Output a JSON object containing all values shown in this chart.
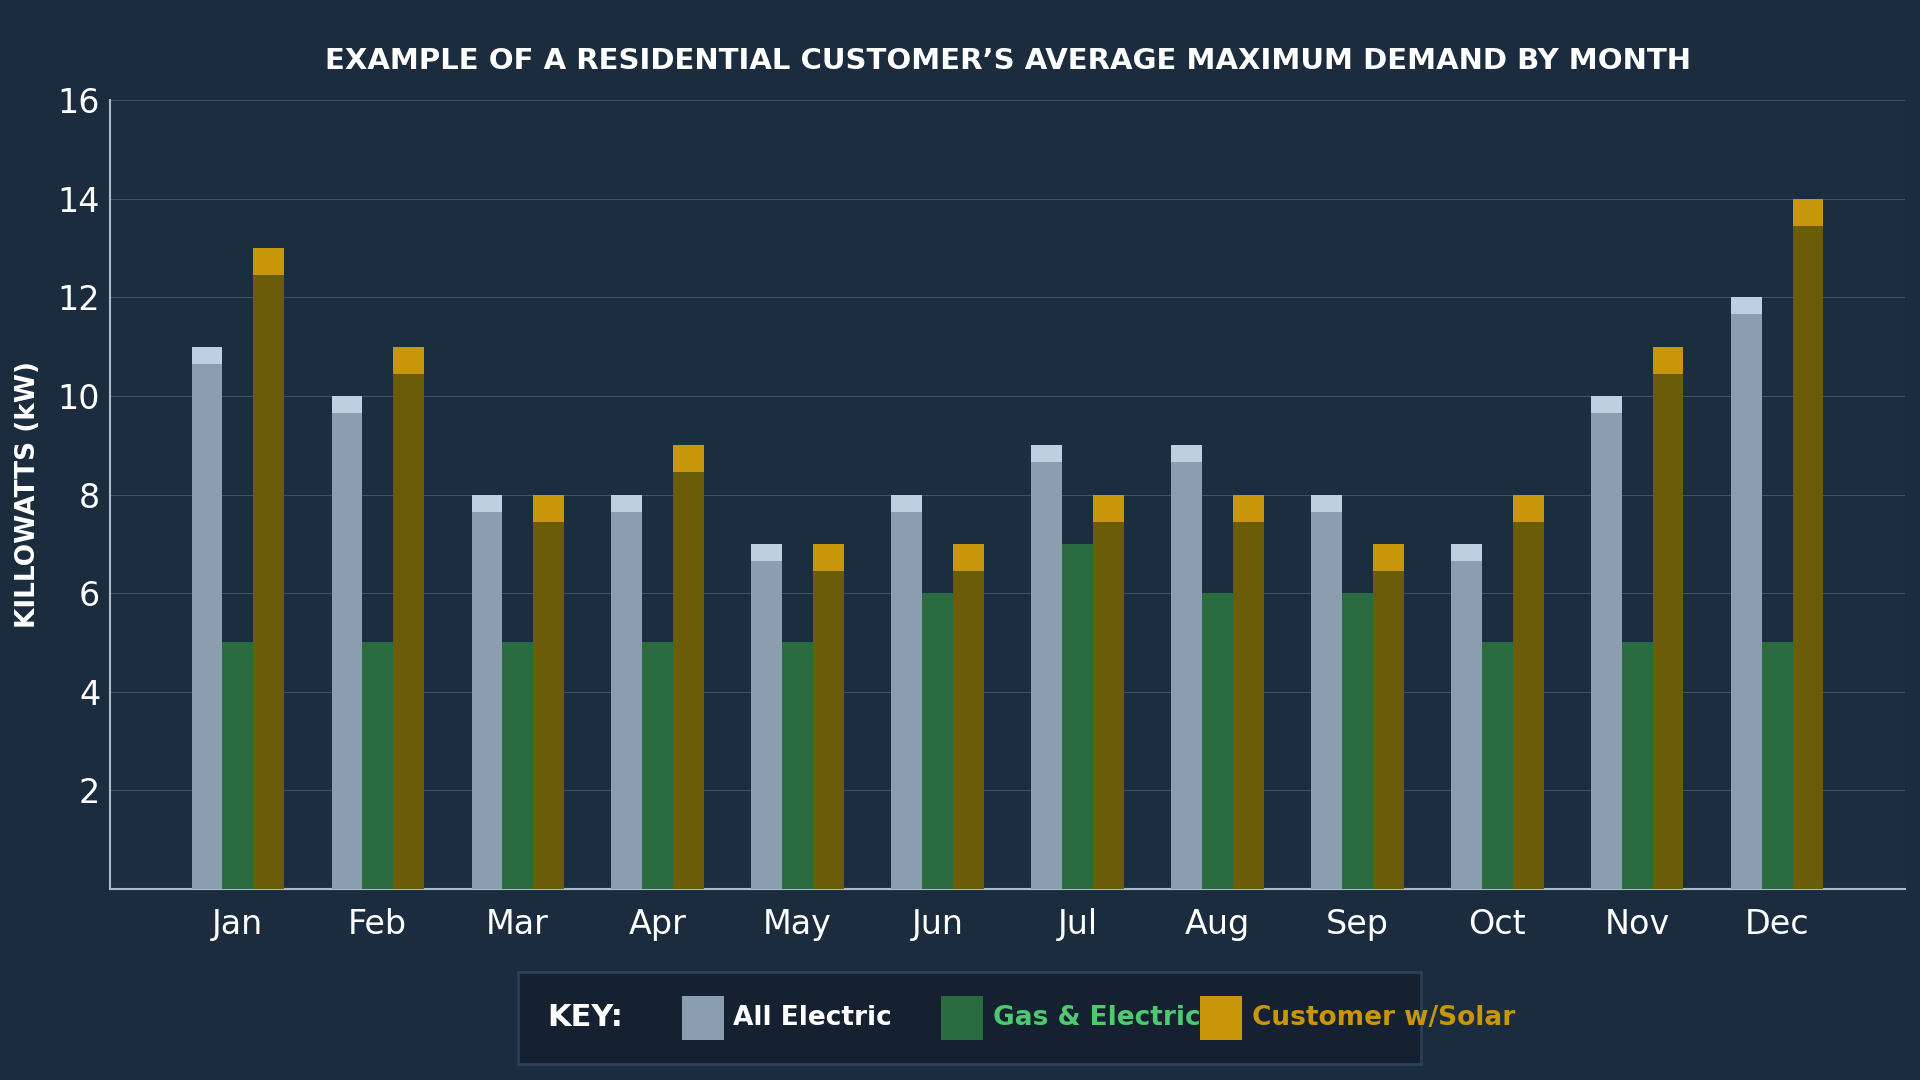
{
  "title": "EXAMPLE OF A RESIDENTIAL CUSTOMER’S AVERAGE MAXIMUM DEMAND BY MONTH",
  "ylabel": "KILLOWATTS (kW)",
  "months": [
    "Jan",
    "Feb",
    "Mar",
    "Apr",
    "May",
    "Jun",
    "Jul",
    "Aug",
    "Sep",
    "Oct",
    "Nov",
    "Dec"
  ],
  "all_electric": [
    11,
    10,
    8,
    8,
    7,
    8,
    9,
    9,
    8,
    7,
    10,
    12
  ],
  "gas_electric": [
    5,
    5,
    5,
    5,
    5,
    6,
    7,
    6,
    6,
    5,
    5,
    5
  ],
  "customer_solar": [
    13,
    11,
    8,
    9,
    7,
    7,
    8,
    8,
    7,
    8,
    11,
    14
  ],
  "color_all_electric": "#8B9EAF",
  "color_gas_electric": "#2A6B3F",
  "color_solar_body": "#6B5C0A",
  "color_solar_top": "#C8960A",
  "bg_color_top": "#1A2C3D",
  "bg_color_bot": "#0D1E2E",
  "plot_bg_color": "#1A2E40",
  "grid_color": "#FFFFFF",
  "text_color": "#FFFFFF",
  "title_color": "#FFFFFF",
  "ylim": [
    0,
    16
  ],
  "yticks": [
    2,
    4,
    6,
    8,
    10,
    12,
    14,
    16
  ],
  "bar_width": 0.22,
  "legend_bg": "#152030",
  "legend_border": "#2A4055"
}
